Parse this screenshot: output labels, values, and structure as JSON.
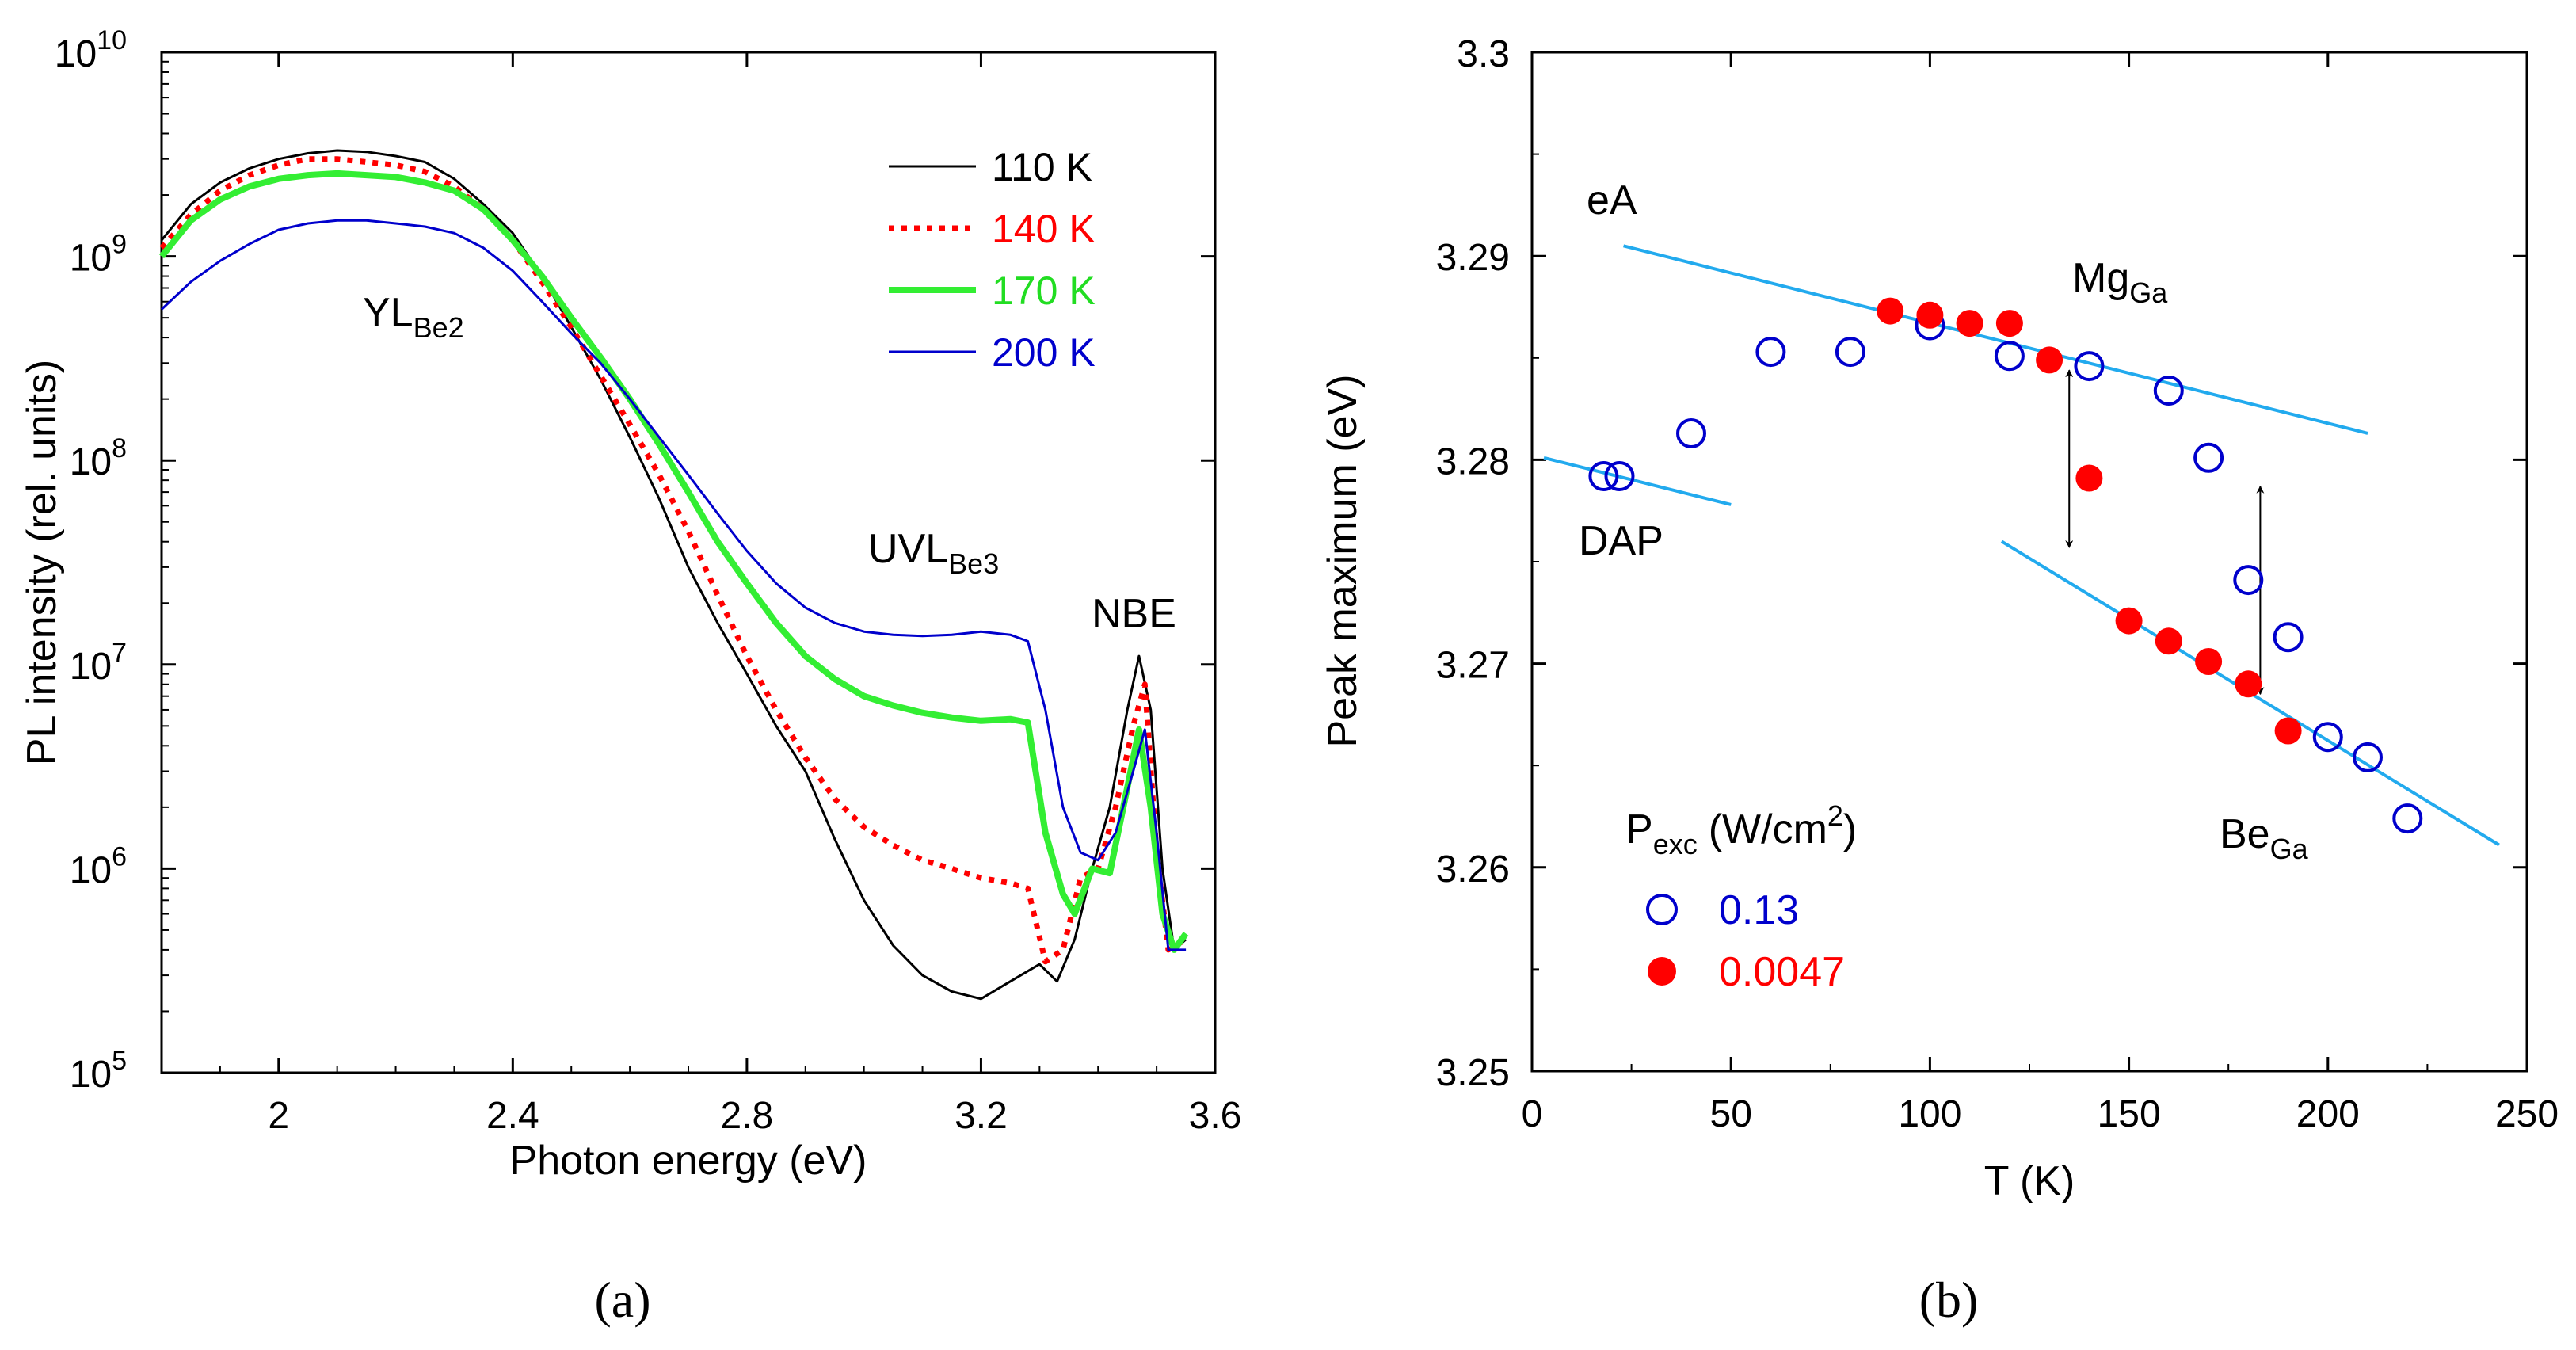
{
  "chart_data": [
    {
      "type": "line",
      "panel_label": "(a)",
      "xlabel": "Photon energy (eV)",
      "ylabel": "PL intensity (rel. units)",
      "yscale": "log",
      "xlim": [
        1.8,
        3.6
      ],
      "ylim": [
        100000,
        10000000000
      ],
      "xticks": [
        "2",
        "2.4",
        "2.8",
        "3.2",
        "3.6"
      ],
      "xtick_values": [
        2.0,
        2.4,
        2.8,
        3.2,
        3.6
      ],
      "yticks_base": "10",
      "yticks_exp": [
        "5",
        "6",
        "7",
        "8",
        "9",
        "10"
      ],
      "legend_position": "top-right",
      "series": [
        {
          "name": "110 K",
          "color": "#000000",
          "style": "solid",
          "width": 3,
          "x": [
            1.8,
            1.85,
            1.9,
            1.95,
            2.0,
            2.05,
            2.1,
            2.15,
            2.2,
            2.25,
            2.3,
            2.35,
            2.4,
            2.45,
            2.5,
            2.55,
            2.6,
            2.65,
            2.7,
            2.75,
            2.8,
            2.85,
            2.9,
            2.95,
            3.0,
            3.05,
            3.1,
            3.15,
            3.2,
            3.25,
            3.3,
            3.33,
            3.36,
            3.39,
            3.42,
            3.45,
            3.47,
            3.49,
            3.51,
            3.53,
            3.55
          ],
          "y": [
            1200000000.0,
            1800000000.0,
            2300000000.0,
            2700000000.0,
            3000000000.0,
            3200000000.0,
            3300000000.0,
            3250000000.0,
            3100000000.0,
            2900000000.0,
            2400000000.0,
            1800000000.0,
            1300000000.0,
            800000000.0,
            450000000.0,
            250000000.0,
            130000000.0,
            65000000.0,
            30000000.0,
            16000000.0,
            9000000.0,
            5000000.0,
            3000000.0,
            1400000.0,
            700000.0,
            420000.0,
            300000.0,
            250000.0,
            230000.0,
            280000.0,
            340000.0,
            280000.0,
            450000.0,
            1000000.0,
            2000000.0,
            6000000.0,
            11000000.0,
            6000000.0,
            1000000.0,
            400000.0,
            450000.0
          ]
        },
        {
          "name": "140 K",
          "color": "#ff0000",
          "style": "dotted",
          "width": 7,
          "x": [
            1.8,
            1.85,
            1.9,
            1.95,
            2.0,
            2.05,
            2.1,
            2.15,
            2.2,
            2.25,
            2.3,
            2.35,
            2.4,
            2.45,
            2.5,
            2.55,
            2.6,
            2.65,
            2.7,
            2.75,
            2.8,
            2.85,
            2.9,
            2.95,
            3.0,
            3.05,
            3.1,
            3.15,
            3.2,
            3.25,
            3.28,
            3.31,
            3.34,
            3.37,
            3.4,
            3.43,
            3.46,
            3.48,
            3.5,
            3.52,
            3.55
          ],
          "y": [
            1100000000.0,
            1600000000.0,
            2100000000.0,
            2500000000.0,
            2800000000.0,
            3000000000.0,
            3000000000.0,
            2900000000.0,
            2800000000.0,
            2600000000.0,
            2200000000.0,
            1700000000.0,
            1200000000.0,
            750000000.0,
            450000000.0,
            260000000.0,
            150000000.0,
            85000000.0,
            45000000.0,
            22000000.0,
            11000000.0,
            6000000.0,
            3500000.0,
            2200000.0,
            1600000.0,
            1300000.0,
            1100000.0,
            1000000.0,
            900000.0,
            850000.0,
            800000.0,
            350000.0,
            400000.0,
            900000.0,
            1000000.0,
            2000000.0,
            5000000.0,
            8000000.0,
            1200000.0,
            400000.0,
            450000.0
          ]
        },
        {
          "name": "170 K",
          "color": "#33ee33",
          "style": "solid",
          "width": 8,
          "x": [
            1.8,
            1.85,
            1.9,
            1.95,
            2.0,
            2.05,
            2.1,
            2.15,
            2.2,
            2.25,
            2.3,
            2.35,
            2.4,
            2.45,
            2.5,
            2.55,
            2.6,
            2.65,
            2.7,
            2.75,
            2.8,
            2.85,
            2.9,
            2.95,
            3.0,
            3.05,
            3.1,
            3.15,
            3.2,
            3.25,
            3.28,
            3.31,
            3.34,
            3.36,
            3.39,
            3.42,
            3.45,
            3.47,
            3.49,
            3.51,
            3.53,
            3.55
          ],
          "y": [
            1000000000.0,
            1500000000.0,
            1900000000.0,
            2200000000.0,
            2400000000.0,
            2500000000.0,
            2550000000.0,
            2500000000.0,
            2450000000.0,
            2300000000.0,
            2100000000.0,
            1700000000.0,
            1200000000.0,
            800000000.0,
            500000000.0,
            320000000.0,
            200000000.0,
            120000000.0,
            70000000.0,
            40000000.0,
            25000000.0,
            16000000.0,
            11000000.0,
            8500000.0,
            7000000.0,
            6300000.0,
            5800000.0,
            5500000.0,
            5300000.0,
            5400000.0,
            5200000.0,
            1500000.0,
            750000.0,
            600000.0,
            1000000.0,
            950000.0,
            2500000.0,
            4800000.0,
            2000000.0,
            600000.0,
            400000.0,
            480000.0
          ]
        },
        {
          "name": "200 K",
          "color": "#0000cc",
          "style": "solid",
          "width": 3,
          "x": [
            1.8,
            1.85,
            1.9,
            1.95,
            2.0,
            2.05,
            2.1,
            2.15,
            2.2,
            2.25,
            2.3,
            2.35,
            2.4,
            2.45,
            2.5,
            2.55,
            2.6,
            2.65,
            2.7,
            2.75,
            2.8,
            2.85,
            2.9,
            2.95,
            3.0,
            3.05,
            3.1,
            3.15,
            3.2,
            3.25,
            3.28,
            3.31,
            3.34,
            3.37,
            3.4,
            3.43,
            3.46,
            3.48,
            3.5,
            3.52,
            3.55
          ],
          "y": [
            550000000.0,
            750000000.0,
            950000000.0,
            1150000000.0,
            1350000000.0,
            1450000000.0,
            1500000000.0,
            1500000000.0,
            1450000000.0,
            1400000000.0,
            1300000000.0,
            1100000000.0,
            850000000.0,
            600000000.0,
            420000000.0,
            300000000.0,
            200000000.0,
            130000000.0,
            85000000.0,
            55000000.0,
            36000000.0,
            25000000.0,
            19000000.0,
            16000000.0,
            14500000.0,
            14000000.0,
            13800000.0,
            14000000.0,
            14500000.0,
            14000000.0,
            13000000.0,
            6000000.0,
            2000000.0,
            1200000.0,
            1100000.0,
            1500000.0,
            3000000.0,
            4800000.0,
            1500000.0,
            400000.0,
            400000.0
          ]
        }
      ],
      "annotations": [
        {
          "text": "YL",
          "sub": "Be2",
          "x": 2.08,
          "y": 650000000.0
        },
        {
          "text": "UVL",
          "sub": "Be3",
          "x": 3.0,
          "y": 29000000.0
        },
        {
          "text": "NBE",
          "x": 3.46,
          "y": 22000000.0
        }
      ]
    },
    {
      "type": "scatter",
      "panel_label": "(b)",
      "xlabel": "T (K)",
      "ylabel": "Peak maximum (eV)",
      "xlim": [
        0,
        250
      ],
      "ylim": [
        3.25,
        3.3
      ],
      "xticks": [
        "0",
        "50",
        "100",
        "150",
        "200",
        "250"
      ],
      "xtick_values": [
        0,
        50,
        100,
        150,
        200,
        250
      ],
      "yticks": [
        "3.25",
        "3.26",
        "3.27",
        "3.28",
        "3.29",
        "3.3"
      ],
      "ytick_values": [
        3.25,
        3.26,
        3.27,
        3.28,
        3.29,
        3.3
      ],
      "legend": {
        "title": "P",
        "title_sub": "exc",
        "title_rest": "(W/cm",
        "title_sup": "2",
        "title_close": ")",
        "position": "bottom-left"
      },
      "series": [
        {
          "name": "0.13",
          "marker": "open-circle",
          "color": "#0000cc",
          "x": [
            18,
            22,
            40,
            60,
            80,
            100,
            120,
            140,
            160,
            170,
            180,
            190,
            200,
            210,
            220
          ],
          "y": [
            3.2792,
            3.2792,
            3.2813,
            3.2853,
            3.2853,
            3.2866,
            3.2851,
            3.2846,
            3.2834,
            3.2801,
            3.2741,
            3.2713,
            3.2664,
            3.2654,
            3.2624
          ]
        },
        {
          "name": "0.0047",
          "marker": "filled-circle",
          "color": "#ff0000",
          "x": [
            90,
            100,
            110,
            120,
            130,
            140,
            150,
            160,
            170,
            180,
            190
          ],
          "y": [
            3.2873,
            3.2871,
            3.2867,
            3.2867,
            3.2849,
            3.2791,
            3.2721,
            3.2711,
            3.2701,
            3.269,
            3.2667
          ]
        }
      ],
      "fit_lines": [
        {
          "name": "eA",
          "x": [
            23,
            210
          ],
          "y": [
            3.2905,
            3.2813
          ]
        },
        {
          "name": "DAP",
          "x": [
            3,
            50
          ],
          "y": [
            3.2801,
            3.2778
          ]
        },
        {
          "name": "Be",
          "x": [
            118,
            243
          ],
          "y": [
            3.276,
            3.2611
          ]
        }
      ],
      "arrows": [
        {
          "x": 135,
          "y_from": 3.2757,
          "y_to": 3.2844
        },
        {
          "x": 183,
          "y_from": 3.2685,
          "y_to": 3.2787
        }
      ],
      "annotations": [
        {
          "text": "eA",
          "x": 14,
          "y": 3.2911
        },
        {
          "text": "DAP",
          "x": 12,
          "y": 3.2768
        },
        {
          "text": "Mg",
          "sub": "Ga",
          "x": 152,
          "y": 3.2882
        },
        {
          "text": "Be",
          "sub": "Ga",
          "x": 212,
          "y": 3.2612
        }
      ]
    }
  ]
}
